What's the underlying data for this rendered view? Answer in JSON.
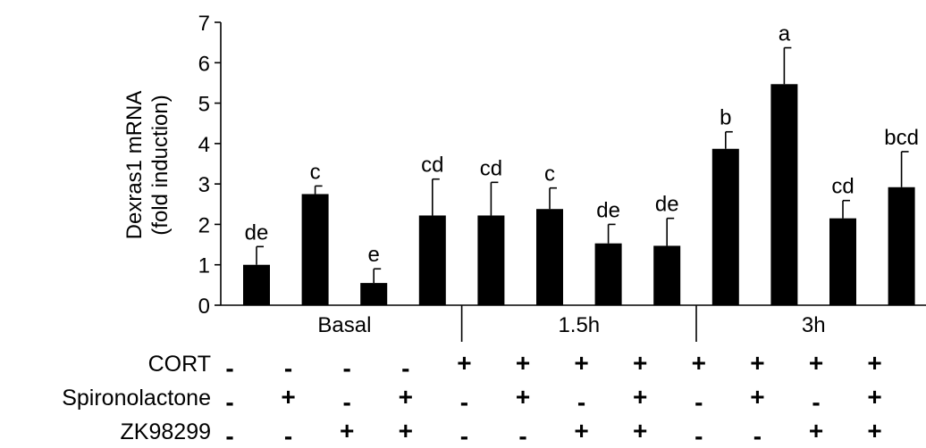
{
  "chart_data": {
    "type": "bar",
    "ylabel_lines": [
      "Dexras1 mRNA",
      "(fold induction)"
    ],
    "ylim": [
      0,
      7
    ],
    "yticks": [
      0,
      1,
      2,
      3,
      4,
      5,
      6,
      7
    ],
    "groups": [
      {
        "label": "Basal",
        "bars": [
          0,
          1,
          2,
          3
        ]
      },
      {
        "label": "1.5h",
        "bars": [
          4,
          5,
          6,
          7
        ]
      },
      {
        "label": "3h",
        "bars": [
          8,
          9,
          10,
          11
        ]
      }
    ],
    "values": [
      1.0,
      2.75,
      0.55,
      2.22,
      2.22,
      2.38,
      1.53,
      1.47,
      3.87,
      5.47,
      2.15,
      2.92
    ],
    "errors": [
      0.45,
      0.2,
      0.35,
      0.9,
      0.82,
      0.52,
      0.47,
      0.68,
      0.42,
      0.9,
      0.44,
      0.88
    ],
    "letters": [
      "de",
      "c",
      "e",
      "cd",
      "cd",
      "c",
      "de",
      "de",
      "b",
      "a",
      "cd",
      "bcd"
    ],
    "bar_color": "#000000",
    "treatments": [
      {
        "name": "CORT",
        "signs": [
          "-",
          "-",
          "-",
          "-",
          "+",
          "+",
          "+",
          "+",
          "+",
          "+",
          "+",
          "+"
        ]
      },
      {
        "name": "Spironolactone",
        "signs": [
          "-",
          "+",
          "-",
          "+",
          "-",
          "+",
          "-",
          "+",
          "-",
          "+",
          "-",
          "+"
        ]
      },
      {
        "name": "ZK98299",
        "signs": [
          "-",
          "-",
          "+",
          "+",
          "-",
          "-",
          "+",
          "+",
          "-",
          "-",
          "+",
          "+"
        ]
      }
    ]
  }
}
